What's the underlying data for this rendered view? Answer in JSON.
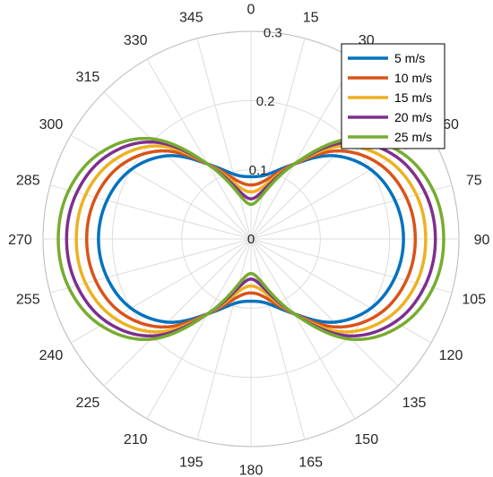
{
  "chart_data": {
    "type": "polar-line",
    "theta_zero": "top",
    "theta_direction": "clockwise",
    "theta_ticks": [
      0,
      15,
      30,
      45,
      60,
      75,
      90,
      105,
      120,
      135,
      150,
      165,
      180,
      195,
      210,
      225,
      240,
      255,
      270,
      285,
      300,
      315,
      330,
      345
    ],
    "theta_tick_labels": [
      "0",
      "15",
      "30",
      "45",
      "60",
      "75",
      "90",
      "105",
      "120",
      "135",
      "150",
      "165",
      "180",
      "195",
      "210",
      "225",
      "240",
      "255",
      "270",
      "285",
      "300",
      "315",
      "330",
      "345"
    ],
    "r_ticks": [
      0,
      0.1,
      0.2,
      0.3
    ],
    "r_tick_labels": [
      "0",
      "0.1",
      "0.2",
      "0.3"
    ],
    "rlim": [
      0,
      0.3
    ],
    "grid": true,
    "legend_position": "top-right",
    "series": [
      {
        "name": "5 m/s",
        "color": "#0072BD",
        "theta": [
          0,
          15,
          30,
          45,
          60,
          75,
          90
        ],
        "r": [
          0.09,
          0.097,
          0.125,
          0.17,
          0.2,
          0.215,
          0.22
        ]
      },
      {
        "name": "10 m/s",
        "color": "#D95319",
        "theta": [
          0,
          15,
          30,
          45,
          60,
          75,
          90
        ],
        "r": [
          0.078,
          0.089,
          0.125,
          0.18,
          0.215,
          0.232,
          0.237
        ]
      },
      {
        "name": "15 m/s",
        "color": "#EDB120",
        "theta": [
          0,
          15,
          30,
          45,
          60,
          75,
          90
        ],
        "r": [
          0.068,
          0.081,
          0.125,
          0.19,
          0.228,
          0.247,
          0.252
        ]
      },
      {
        "name": "20 m/s",
        "color": "#7E2F8E",
        "theta": [
          0,
          15,
          30,
          45,
          60,
          75,
          90
        ],
        "r": [
          0.058,
          0.074,
          0.125,
          0.198,
          0.24,
          0.26,
          0.266
        ]
      },
      {
        "name": "25 m/s",
        "color": "#77AC30",
        "theta": [
          0,
          15,
          30,
          45,
          60,
          75,
          90
        ],
        "r": [
          0.05,
          0.067,
          0.125,
          0.205,
          0.25,
          0.272,
          0.278
        ]
      }
    ]
  }
}
